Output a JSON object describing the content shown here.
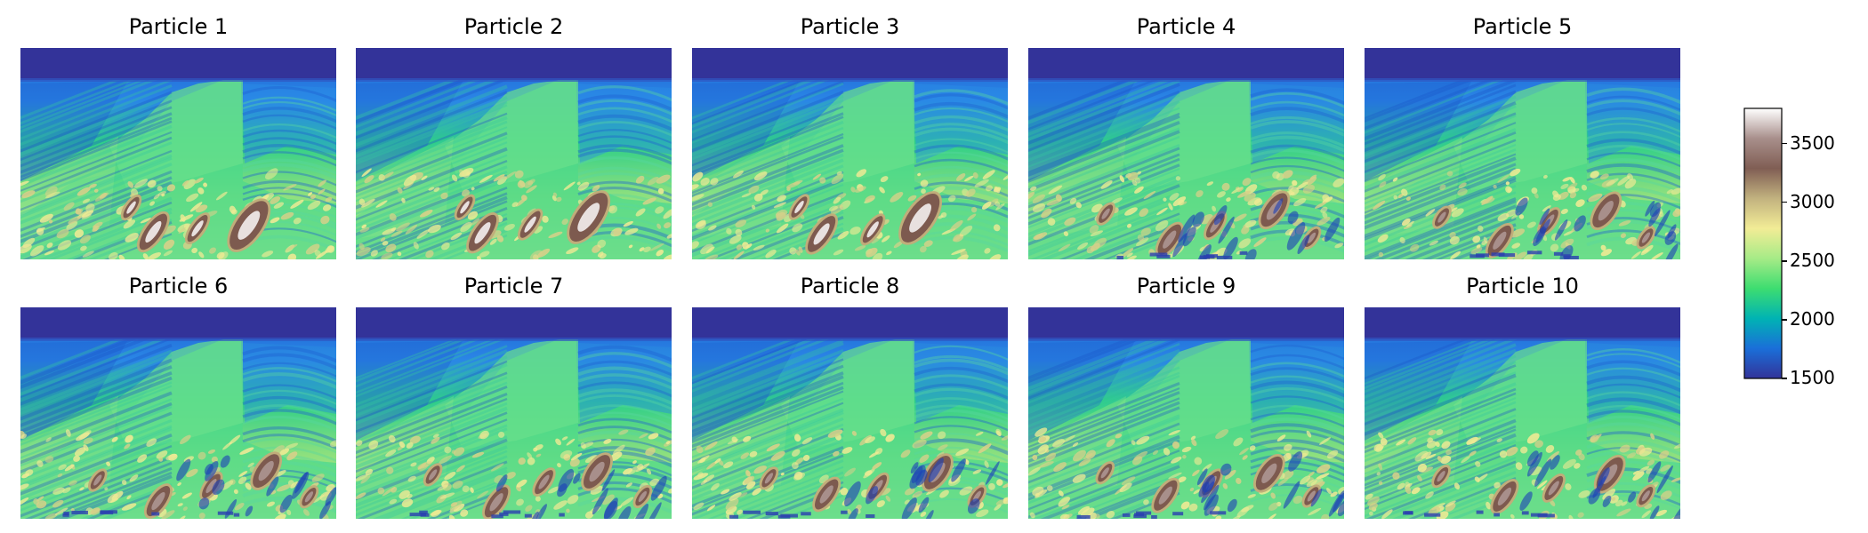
{
  "chart_data": {
    "type": "heatmap",
    "panels": [
      {
        "title": "Particle 1"
      },
      {
        "title": "Particle 2"
      },
      {
        "title": "Particle 3"
      },
      {
        "title": "Particle 4"
      },
      {
        "title": "Particle 5"
      },
      {
        "title": "Particle 6"
      },
      {
        "title": "Particle 7"
      },
      {
        "title": "Particle 8"
      },
      {
        "title": "Particle 9"
      },
      {
        "title": "Particle 10"
      }
    ],
    "colorbar": {
      "colormap": "terrain",
      "range": [
        1500,
        3800
      ],
      "ticks": [
        1500,
        2000,
        2500,
        3000,
        3500
      ],
      "tick_labels": [
        "1500",
        "2000",
        "2500",
        "3000",
        "3500"
      ],
      "colors": [
        "#333399",
        "#1a6fd9",
        "#00b3b3",
        "#3ddd70",
        "#a6eb87",
        "#f2ec96",
        "#c2b27f",
        "#805e54",
        "#a88f8b",
        "#ffffff"
      ]
    },
    "axes_visible": false
  }
}
